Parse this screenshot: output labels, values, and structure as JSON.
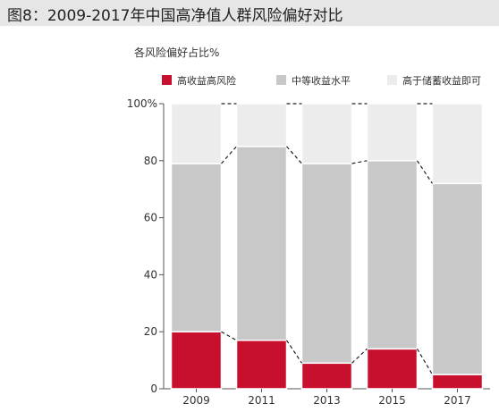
{
  "title": "图8：2009-2017年中国高净值人群风险偏好对比",
  "chart_data": {
    "type": "bar",
    "stacked": true,
    "percent": true,
    "title": "图8：2009-2017年中国高净值人群风险偏好对比",
    "ylabel": "各风险偏好占比%",
    "xlabel": "",
    "ylim": [
      0,
      100
    ],
    "yticks": [
      "0",
      "20",
      "40",
      "60",
      "80",
      "100%"
    ],
    "categories": [
      "2009",
      "2011",
      "2013",
      "2015",
      "2017"
    ],
    "series": [
      {
        "name": "高收益高风险",
        "color": "#c8102e",
        "values": [
          20,
          17,
          9,
          14,
          5
        ]
      },
      {
        "name": "中等收益水平",
        "color": "#c8c8c8",
        "values": [
          59,
          68,
          70,
          66,
          67
        ]
      },
      {
        "name": "高于储蓄收益即可",
        "color": "#ececec",
        "values": [
          21,
          15,
          21,
          20,
          28
        ]
      }
    ],
    "legend_position": "top",
    "grid": false
  }
}
